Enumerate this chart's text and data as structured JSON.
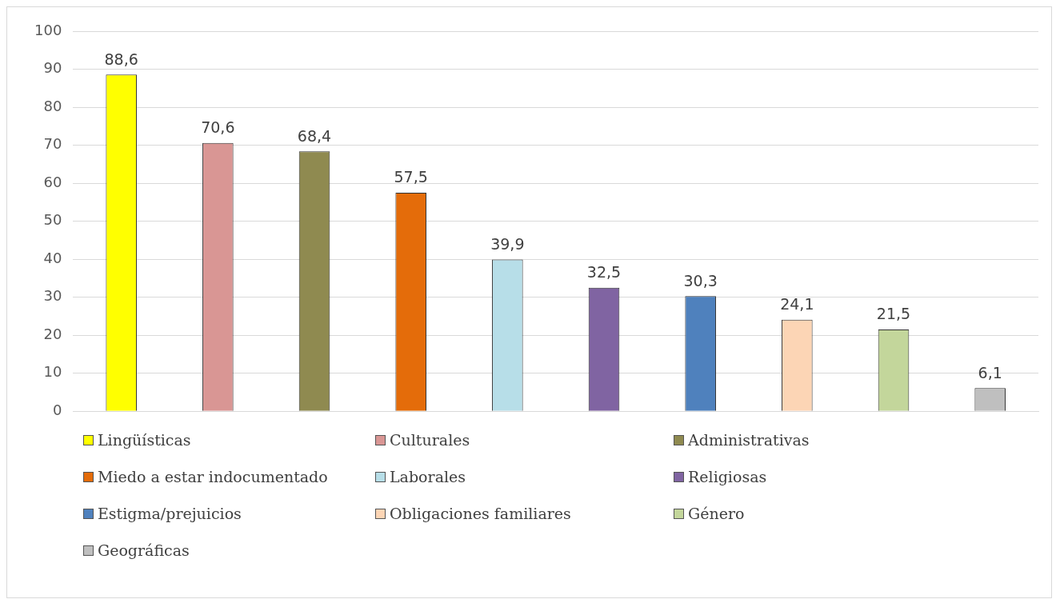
{
  "chart_data": {
    "type": "bar",
    "categories": [
      null,
      null,
      null,
      null,
      null,
      null,
      null,
      null,
      null,
      null
    ],
    "series": [
      {
        "name": "Lingüísticas",
        "color": "#ffff00",
        "values": [
          88.6,
          null,
          null,
          null,
          null,
          null,
          null,
          null,
          null,
          null
        ],
        "value_labels": [
          "88,6",
          null,
          null,
          null,
          null,
          null,
          null,
          null,
          null,
          null
        ]
      },
      {
        "name": "Culturales",
        "color": "#d99694",
        "values": [
          null,
          70.6,
          null,
          null,
          null,
          null,
          null,
          null,
          null,
          null
        ],
        "value_labels": [
          null,
          "70,6",
          null,
          null,
          null,
          null,
          null,
          null,
          null,
          null
        ]
      },
      {
        "name": "Administrativas",
        "color": "#8f8a50",
        "values": [
          null,
          null,
          68.4,
          null,
          null,
          null,
          null,
          null,
          null,
          null
        ],
        "value_labels": [
          null,
          null,
          "68,4",
          null,
          null,
          null,
          null,
          null,
          null,
          null
        ]
      },
      {
        "name": "Miedo a estar indocumentado",
        "color": "#e46c0a",
        "values": [
          null,
          null,
          null,
          57.5,
          null,
          null,
          null,
          null,
          null,
          null
        ],
        "value_labels": [
          null,
          null,
          null,
          "57,5",
          null,
          null,
          null,
          null,
          null,
          null
        ]
      },
      {
        "name": "Laborales",
        "color": "#b7dee8",
        "values": [
          null,
          null,
          null,
          null,
          39.9,
          null,
          null,
          null,
          null,
          null
        ],
        "value_labels": [
          null,
          null,
          null,
          null,
          "39,9",
          null,
          null,
          null,
          null,
          null
        ]
      },
      {
        "name": "Religiosas",
        "color": "#8064a2",
        "values": [
          null,
          null,
          null,
          null,
          null,
          32.5,
          null,
          null,
          null,
          null
        ],
        "value_labels": [
          null,
          null,
          null,
          null,
          null,
          "32,5",
          null,
          null,
          null,
          null
        ]
      },
      {
        "name": "Estigma/prejuicios",
        "color": "#4f81bd",
        "values": [
          null,
          null,
          null,
          null,
          null,
          null,
          30.3,
          null,
          null,
          null
        ],
        "value_labels": [
          null,
          null,
          null,
          null,
          null,
          null,
          "30,3",
          null,
          null,
          null
        ]
      },
      {
        "name": "Obligaciones familiares",
        "color": "#fcd5b5",
        "values": [
          null,
          null,
          null,
          null,
          null,
          null,
          null,
          24.1,
          null,
          null
        ],
        "value_labels": [
          null,
          null,
          null,
          null,
          null,
          null,
          null,
          "24,1",
          null,
          null
        ]
      },
      {
        "name": "Género",
        "color": "#c3d69b",
        "values": [
          null,
          null,
          null,
          null,
          null,
          null,
          null,
          null,
          21.5,
          null
        ],
        "value_labels": [
          null,
          null,
          null,
          null,
          null,
          null,
          null,
          null,
          "21,5",
          null
        ]
      },
      {
        "name": "Geográficas",
        "color": "#bfbfbf",
        "values": [
          null,
          null,
          null,
          null,
          null,
          null,
          null,
          null,
          null,
          6.1
        ],
        "value_labels": [
          null,
          null,
          null,
          null,
          null,
          null,
          null,
          null,
          null,
          "6,1"
        ]
      }
    ],
    "ylim": [
      0,
      100
    ],
    "yticks": [
      0,
      10,
      20,
      30,
      40,
      50,
      60,
      70,
      80,
      90,
      100
    ],
    "grid": "y",
    "legend": "bottom",
    "tick_labels": "y"
  }
}
